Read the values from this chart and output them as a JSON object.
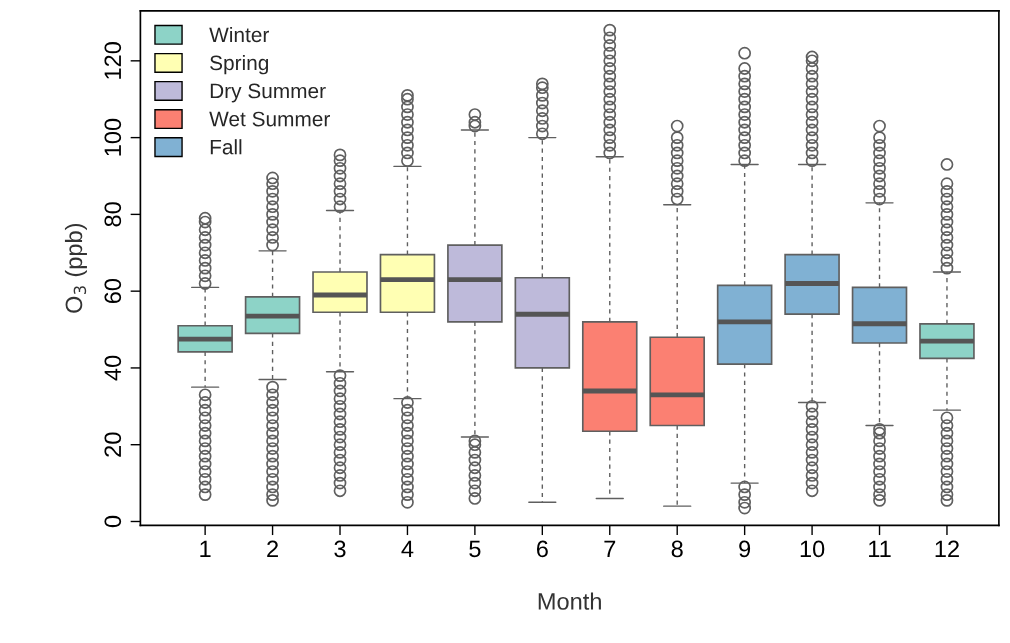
{
  "chart_data": {
    "type": "box",
    "xlabel": "Month",
    "ylabel": "O$_{3}$ (ppb)",
    "categories": [
      "1",
      "2",
      "3",
      "4",
      "5",
      "6",
      "7",
      "8",
      "9",
      "10",
      "11",
      "12"
    ],
    "ylim": [
      -1,
      133
    ],
    "yticks": [
      0,
      20,
      40,
      60,
      80,
      100,
      120
    ],
    "grid": false,
    "legend": "top left",
    "series": [
      {
        "name": "Winter",
        "color": "#8dd3c7",
        "boxes": [
          {
            "low": 35,
            "q1": 44.2,
            "median": 47.5,
            "q3": 51,
            "high": 61,
            "outliers": [
              7,
              9,
              11,
              13,
              15,
              17,
              19,
              21,
              23,
              25,
              27,
              29,
              31,
              33,
              62,
              64,
              66,
              68,
              70,
              72,
              74,
              76,
              78,
              79
            ]
          },
          {
            "low": 37,
            "q1": 49,
            "median": 53.5,
            "q3": 58.5,
            "high": 70.5,
            "outliers": [
              5.5,
              7,
              9,
              11,
              13,
              15,
              17,
              19,
              21,
              23,
              25,
              27,
              29,
              31,
              33,
              35,
              72,
              74,
              76,
              78,
              80,
              82,
              84,
              86,
              88,
              89.5
            ]
          },
          null,
          null,
          null,
          null,
          null,
          null,
          null,
          null,
          null,
          {
            "low": 29,
            "q1": 42.5,
            "median": 47,
            "q3": 51.5,
            "high": 65,
            "outliers": [
              5.5,
              7,
              9,
              11,
              13,
              15,
              17,
              19,
              21,
              23,
              25,
              27,
              66,
              68,
              70,
              72,
              74,
              76,
              78,
              80,
              82,
              84,
              86,
              88,
              93
            ]
          }
        ]
      },
      {
        "name": "Spring",
        "color": "#ffffb3",
        "boxes": [
          null,
          null,
          {
            "low": 39,
            "q1": 54.5,
            "median": 59,
            "q3": 65,
            "high": 81,
            "outliers": [
              8,
              10,
              12,
              14,
              16,
              18,
              20,
              22,
              24,
              26,
              28,
              30,
              32,
              34,
              36,
              38,
              82,
              84,
              86,
              88,
              90,
              92,
              94,
              95.5
            ]
          },
          {
            "low": 32,
            "q1": 54.5,
            "median": 63,
            "q3": 69.5,
            "high": 92.5,
            "outliers": [
              5,
              7,
              9,
              11,
              13,
              15,
              17,
              19,
              21,
              23,
              25,
              27,
              29,
              31,
              94,
              96,
              98,
              100,
              102,
              104,
              106,
              108,
              110,
              111
            ]
          },
          null,
          null,
          null,
          null,
          null,
          null,
          null,
          null
        ]
      },
      {
        "name": "Dry Summer",
        "color": "#bebada",
        "boxes": [
          null,
          null,
          null,
          null,
          {
            "low": 22,
            "q1": 52,
            "median": 63,
            "q3": 72,
            "high": 102,
            "outliers": [
              6,
              8,
              10,
              12,
              14,
              16,
              18,
              20,
              21,
              103,
              104,
              106
            ]
          },
          {
            "low": 5,
            "q1": 40,
            "median": 54,
            "q3": 63.5,
            "high": 100,
            "outliers": [
              101,
              103,
              105,
              107,
              109,
              111,
              113,
              114
            ]
          },
          null,
          null,
          null,
          null,
          null,
          null
        ]
      },
      {
        "name": "Wet Summer",
        "color": "#fb8072",
        "boxes": [
          null,
          null,
          null,
          null,
          null,
          null,
          {
            "low": 6,
            "q1": 23.5,
            "median": 34,
            "q3": 52,
            "high": 95,
            "outliers": [
              96,
              98,
              100,
              102,
              104,
              106,
              108,
              110,
              112,
              114,
              116,
              118,
              120,
              122,
              124,
              126,
              128
            ]
          },
          {
            "low": 4,
            "q1": 25,
            "median": 33,
            "q3": 48,
            "high": 82.5,
            "outliers": [
              84,
              86,
              88,
              90,
              92,
              94,
              96,
              98,
              100,
              103
            ]
          },
          null,
          null,
          null,
          null
        ]
      },
      {
        "name": "Fall",
        "color": "#80b1d3",
        "boxes": [
          null,
          null,
          null,
          null,
          null,
          null,
          null,
          null,
          {
            "low": 10,
            "q1": 41,
            "median": 52,
            "q3": 61.5,
            "high": 93,
            "outliers": [
              3.5,
              5,
              7,
              9,
              94,
              96,
              98,
              100,
              102,
              104,
              106,
              108,
              110,
              112,
              114,
              116,
              118,
              122
            ]
          },
          {
            "low": 31,
            "q1": 54,
            "median": 62,
            "q3": 69.5,
            "high": 93,
            "outliers": [
              8,
              10,
              12,
              14,
              16,
              18,
              20,
              22,
              24,
              26,
              28,
              30,
              94,
              96,
              98,
              100,
              102,
              104,
              106,
              108,
              110,
              112,
              114,
              116,
              118,
              120,
              121
            ]
          },
          {
            "low": 25,
            "q1": 46.5,
            "median": 51.5,
            "q3": 61,
            "high": 83,
            "outliers": [
              5.5,
              7,
              9,
              11,
              13,
              15,
              17,
              19,
              21,
              23,
              24,
              84,
              86,
              88,
              90,
              92,
              94,
              96,
              98,
              100,
              103
            ]
          },
          null
        ]
      }
    ]
  }
}
